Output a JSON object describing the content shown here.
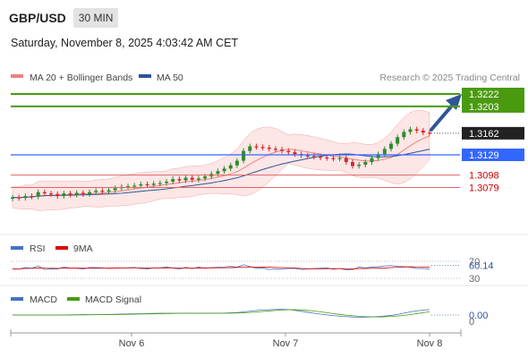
{
  "header": {
    "pair": "GBP/USD",
    "timeframe": "30 MIN"
  },
  "timestamp": "Saturday, November 8, 2025 4:03:42 AM CET",
  "source": "Research © 2025 Trading Central",
  "legend": {
    "main": [
      {
        "label": "MA 20 + Bollinger Bands",
        "color": "#f08080"
      },
      {
        "label": "MA 50",
        "color": "#2f5597"
      }
    ],
    "rsi": [
      {
        "label": "RSI",
        "color": "#4472c4"
      },
      {
        "label": "9MA",
        "color": "#e00000"
      }
    ],
    "macd": [
      {
        "label": "MACD",
        "color": "#4472c4"
      },
      {
        "label": "MACD Signal",
        "color": "#4a9a10"
      }
    ]
  },
  "colors": {
    "up": "#2e8b2e",
    "down": "#d62728",
    "resistance": "#4a9a10",
    "pivot": "#3366ff",
    "support": "#e06666",
    "arrow": "#2f5597"
  },
  "chart_data": {
    "type": "candlestick",
    "x_ticks": [
      "Nov 6",
      "Nov 7",
      "Nov 8"
    ],
    "y_range": [
      1.305,
      1.324
    ],
    "levels": [
      {
        "price": "1.3222",
        "kind": "resistance"
      },
      {
        "price": "1.3203",
        "kind": "resistance"
      },
      {
        "price": "1.3162",
        "kind": "last"
      },
      {
        "price": "1.3129",
        "kind": "pivot"
      },
      {
        "price": "1.3098",
        "kind": "support"
      },
      {
        "price": "1.3079",
        "kind": "support"
      }
    ],
    "close_path": [
      1.3064,
      1.3063,
      1.3066,
      1.3065,
      1.3072,
      1.307,
      1.3069,
      1.3066,
      1.307,
      1.3068,
      1.3071,
      1.3069,
      1.3072,
      1.3074,
      1.3073,
      1.3075,
      1.3078,
      1.308,
      1.3081,
      1.3082,
      1.3084,
      1.3083,
      1.3085,
      1.3086,
      1.3088,
      1.3092,
      1.309,
      1.3094,
      1.3091,
      1.3093,
      1.3096,
      1.31,
      1.3104,
      1.3108,
      1.3113,
      1.312,
      1.3135,
      1.3142,
      1.3141,
      1.314,
      1.3138,
      1.3137,
      1.3135,
      1.3133,
      1.313,
      1.3128,
      1.3127,
      1.3126,
      1.3125,
      1.3124,
      1.3123,
      1.3124,
      1.3118,
      1.3112,
      1.3114,
      1.3118,
      1.3124,
      1.313,
      1.3138,
      1.3146,
      1.3156,
      1.3164,
      1.3168,
      1.3166,
      1.3163,
      1.3162
    ],
    "rsi": {
      "levels": [
        70,
        30
      ],
      "last": "60.14"
    },
    "macd": {
      "last": "0.00",
      "zero_label": "0"
    }
  }
}
